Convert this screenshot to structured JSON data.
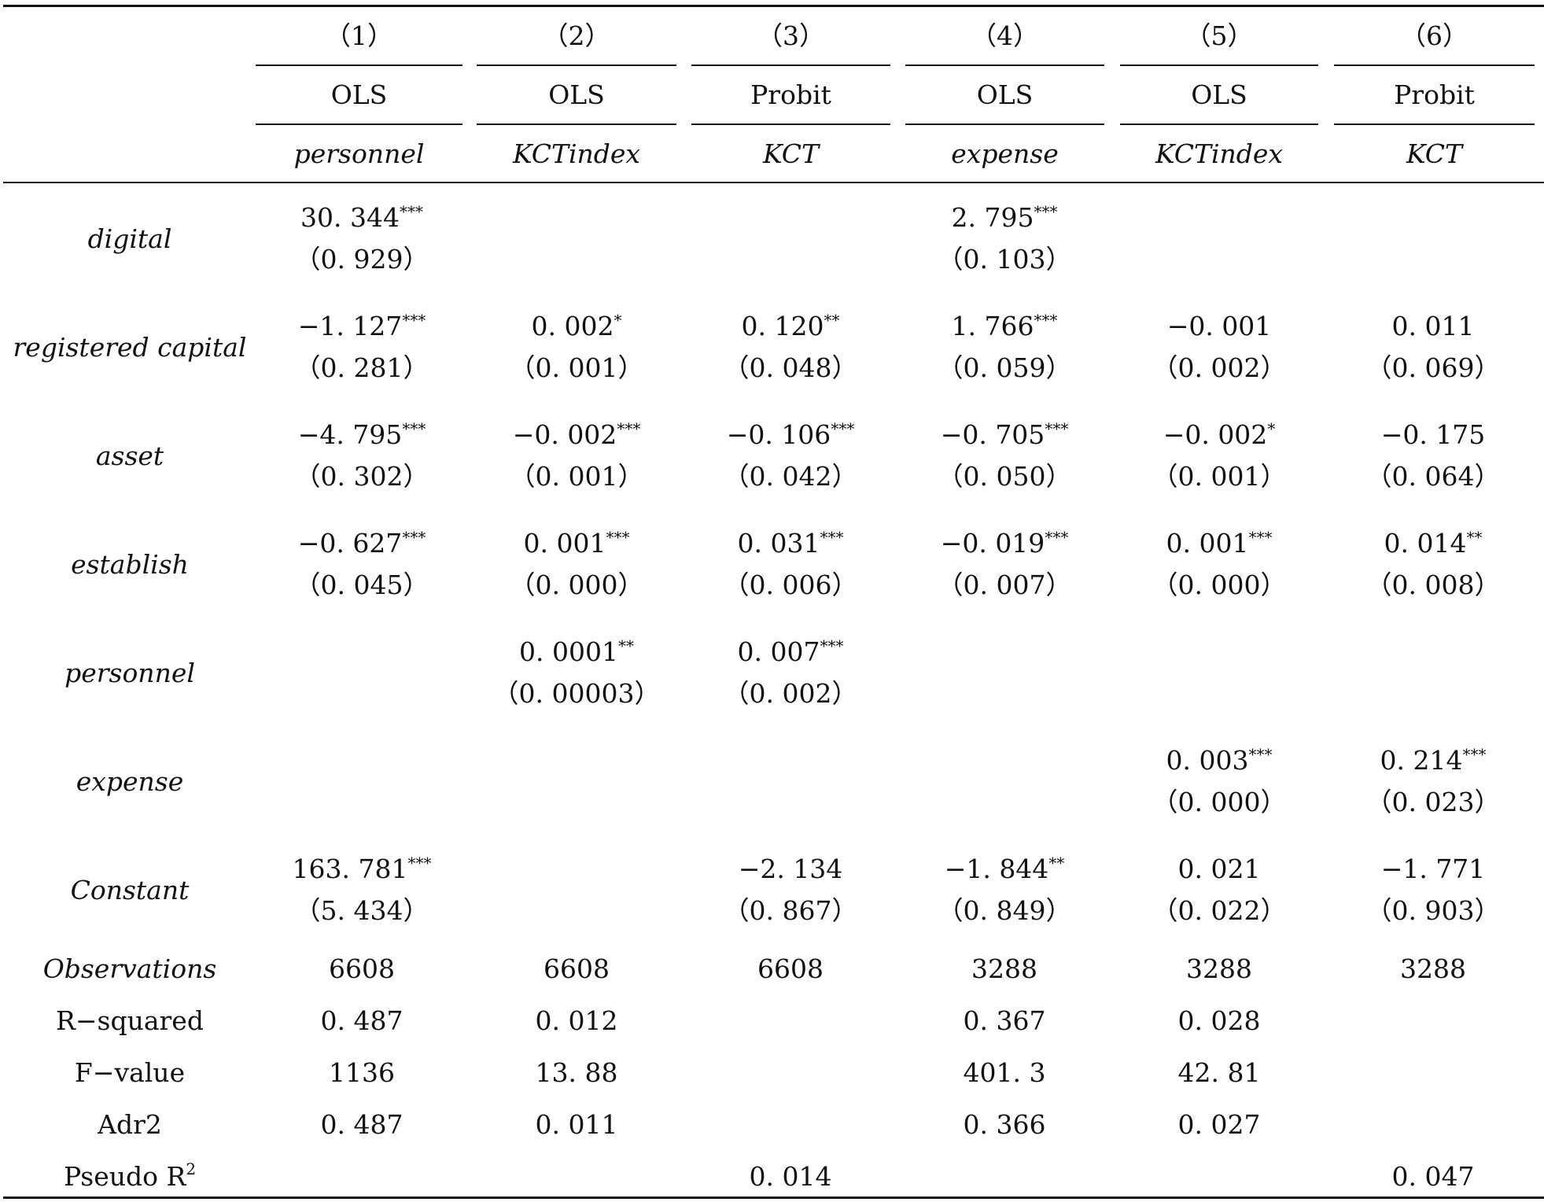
{
  "columns": [
    {
      "number": "（1）",
      "method": "OLS",
      "depvar": "personnel"
    },
    {
      "number": "（2）",
      "method": "OLS",
      "depvar": "KCTindex"
    },
    {
      "number": "（3）",
      "method": "Probit",
      "depvar": "KCT"
    },
    {
      "number": "（4）",
      "method": "OLS",
      "depvar": "expense"
    },
    {
      "number": "（5）",
      "method": "OLS",
      "depvar": "KCTindex"
    },
    {
      "number": "（6）",
      "method": "Probit",
      "depvar": "KCT"
    }
  ],
  "rows": [
    {
      "label": "digital",
      "cells": [
        {
          "coef": "30. 344",
          "stars": "***",
          "se": "（0. 929）"
        },
        {
          "coef": "",
          "stars": "",
          "se": ""
        },
        {
          "coef": "",
          "stars": "",
          "se": ""
        },
        {
          "coef": "2. 795",
          "stars": "***",
          "se": "（0. 103）"
        },
        {
          "coef": "",
          "stars": "",
          "se": ""
        },
        {
          "coef": "",
          "stars": "",
          "se": ""
        }
      ]
    },
    {
      "label": "registered capital",
      "cells": [
        {
          "coef": "−1. 127",
          "stars": "***",
          "se": "（0. 281）"
        },
        {
          "coef": "0. 002",
          "stars": "*",
          "se": "（0. 001）"
        },
        {
          "coef": "0. 120",
          "stars": "**",
          "se": "（0. 048）"
        },
        {
          "coef": "1. 766",
          "stars": "***",
          "se": "（0. 059）"
        },
        {
          "coef": "−0. 001",
          "stars": "",
          "se": "（0. 002）"
        },
        {
          "coef": "0. 011",
          "stars": "",
          "se": "（0. 069）"
        }
      ]
    },
    {
      "label": "asset",
      "cells": [
        {
          "coef": "−4. 795",
          "stars": "***",
          "se": "（0. 302）"
        },
        {
          "coef": "−0. 002",
          "stars": "***",
          "se": "（0. 001）"
        },
        {
          "coef": "−0. 106",
          "stars": "***",
          "se": "（0. 042）"
        },
        {
          "coef": "−0. 705",
          "stars": "***",
          "se": "（0. 050）"
        },
        {
          "coef": "−0. 002",
          "stars": "*",
          "se": "（0. 001）"
        },
        {
          "coef": "−0. 175",
          "stars": "",
          "se": "（0. 064）"
        }
      ]
    },
    {
      "label": "establish",
      "cells": [
        {
          "coef": "−0. 627",
          "stars": "***",
          "se": "（0. 045）"
        },
        {
          "coef": "0. 001",
          "stars": "***",
          "se": "（0. 000）"
        },
        {
          "coef": "0. 031",
          "stars": "***",
          "se": "（0. 006）"
        },
        {
          "coef": "−0. 019",
          "stars": "***",
          "se": "（0. 007）"
        },
        {
          "coef": "0. 001",
          "stars": "***",
          "se": "（0. 000）"
        },
        {
          "coef": "0. 014",
          "stars": "**",
          "se": "（0. 008）"
        }
      ]
    },
    {
      "label": "personnel",
      "cells": [
        {
          "coef": "",
          "stars": "",
          "se": ""
        },
        {
          "coef": "0. 0001",
          "stars": "**",
          "se": "（0. 00003）"
        },
        {
          "coef": "0. 007",
          "stars": "***",
          "se": "（0. 002）"
        },
        {
          "coef": "",
          "stars": "",
          "se": ""
        },
        {
          "coef": "",
          "stars": "",
          "se": ""
        },
        {
          "coef": "",
          "stars": "",
          "se": ""
        }
      ]
    },
    {
      "label": "expense",
      "cells": [
        {
          "coef": "",
          "stars": "",
          "se": ""
        },
        {
          "coef": "",
          "stars": "",
          "se": ""
        },
        {
          "coef": "",
          "stars": "",
          "se": ""
        },
        {
          "coef": "",
          "stars": "",
          "se": ""
        },
        {
          "coef": "0. 003",
          "stars": "***",
          "se": "（0. 000）"
        },
        {
          "coef": "0. 214",
          "stars": "***",
          "se": "（0. 023）"
        }
      ]
    },
    {
      "label": "Constant",
      "cells": [
        {
          "coef": "163. 781",
          "stars": "***",
          "se": "（5. 434）"
        },
        {
          "coef": "",
          "stars": "",
          "se": ""
        },
        {
          "coef": "−2. 134",
          "stars": "",
          "se": "（0. 867）"
        },
        {
          "coef": "−1. 844",
          "stars": "**",
          "se": "（0. 849）"
        },
        {
          "coef": "0. 021",
          "stars": "",
          "se": "（0. 022）"
        },
        {
          "coef": "−1. 771",
          "stars": "",
          "se": "（0. 903）"
        }
      ]
    }
  ],
  "stats": [
    {
      "label": "Observations",
      "italic": true,
      "values": [
        "6608",
        "6608",
        "6608",
        "3288",
        "3288",
        "3288"
      ]
    },
    {
      "label": "R−squared",
      "italic": false,
      "values": [
        "0. 487",
        "0. 012",
        "",
        "0. 367",
        "0. 028",
        ""
      ]
    },
    {
      "label": "F−value",
      "italic": false,
      "values": [
        "1136",
        "13. 88",
        "",
        "401. 3",
        "42. 81",
        ""
      ]
    },
    {
      "label": "Adr2",
      "italic": false,
      "values": [
        "0. 487",
        "0. 011",
        "",
        "0. 366",
        "0. 027",
        ""
      ]
    },
    {
      "label": "Pseudo R",
      "label_sup": "2",
      "italic": false,
      "values": [
        "",
        "",
        "0. 014",
        "",
        "",
        "0. 047"
      ]
    }
  ]
}
